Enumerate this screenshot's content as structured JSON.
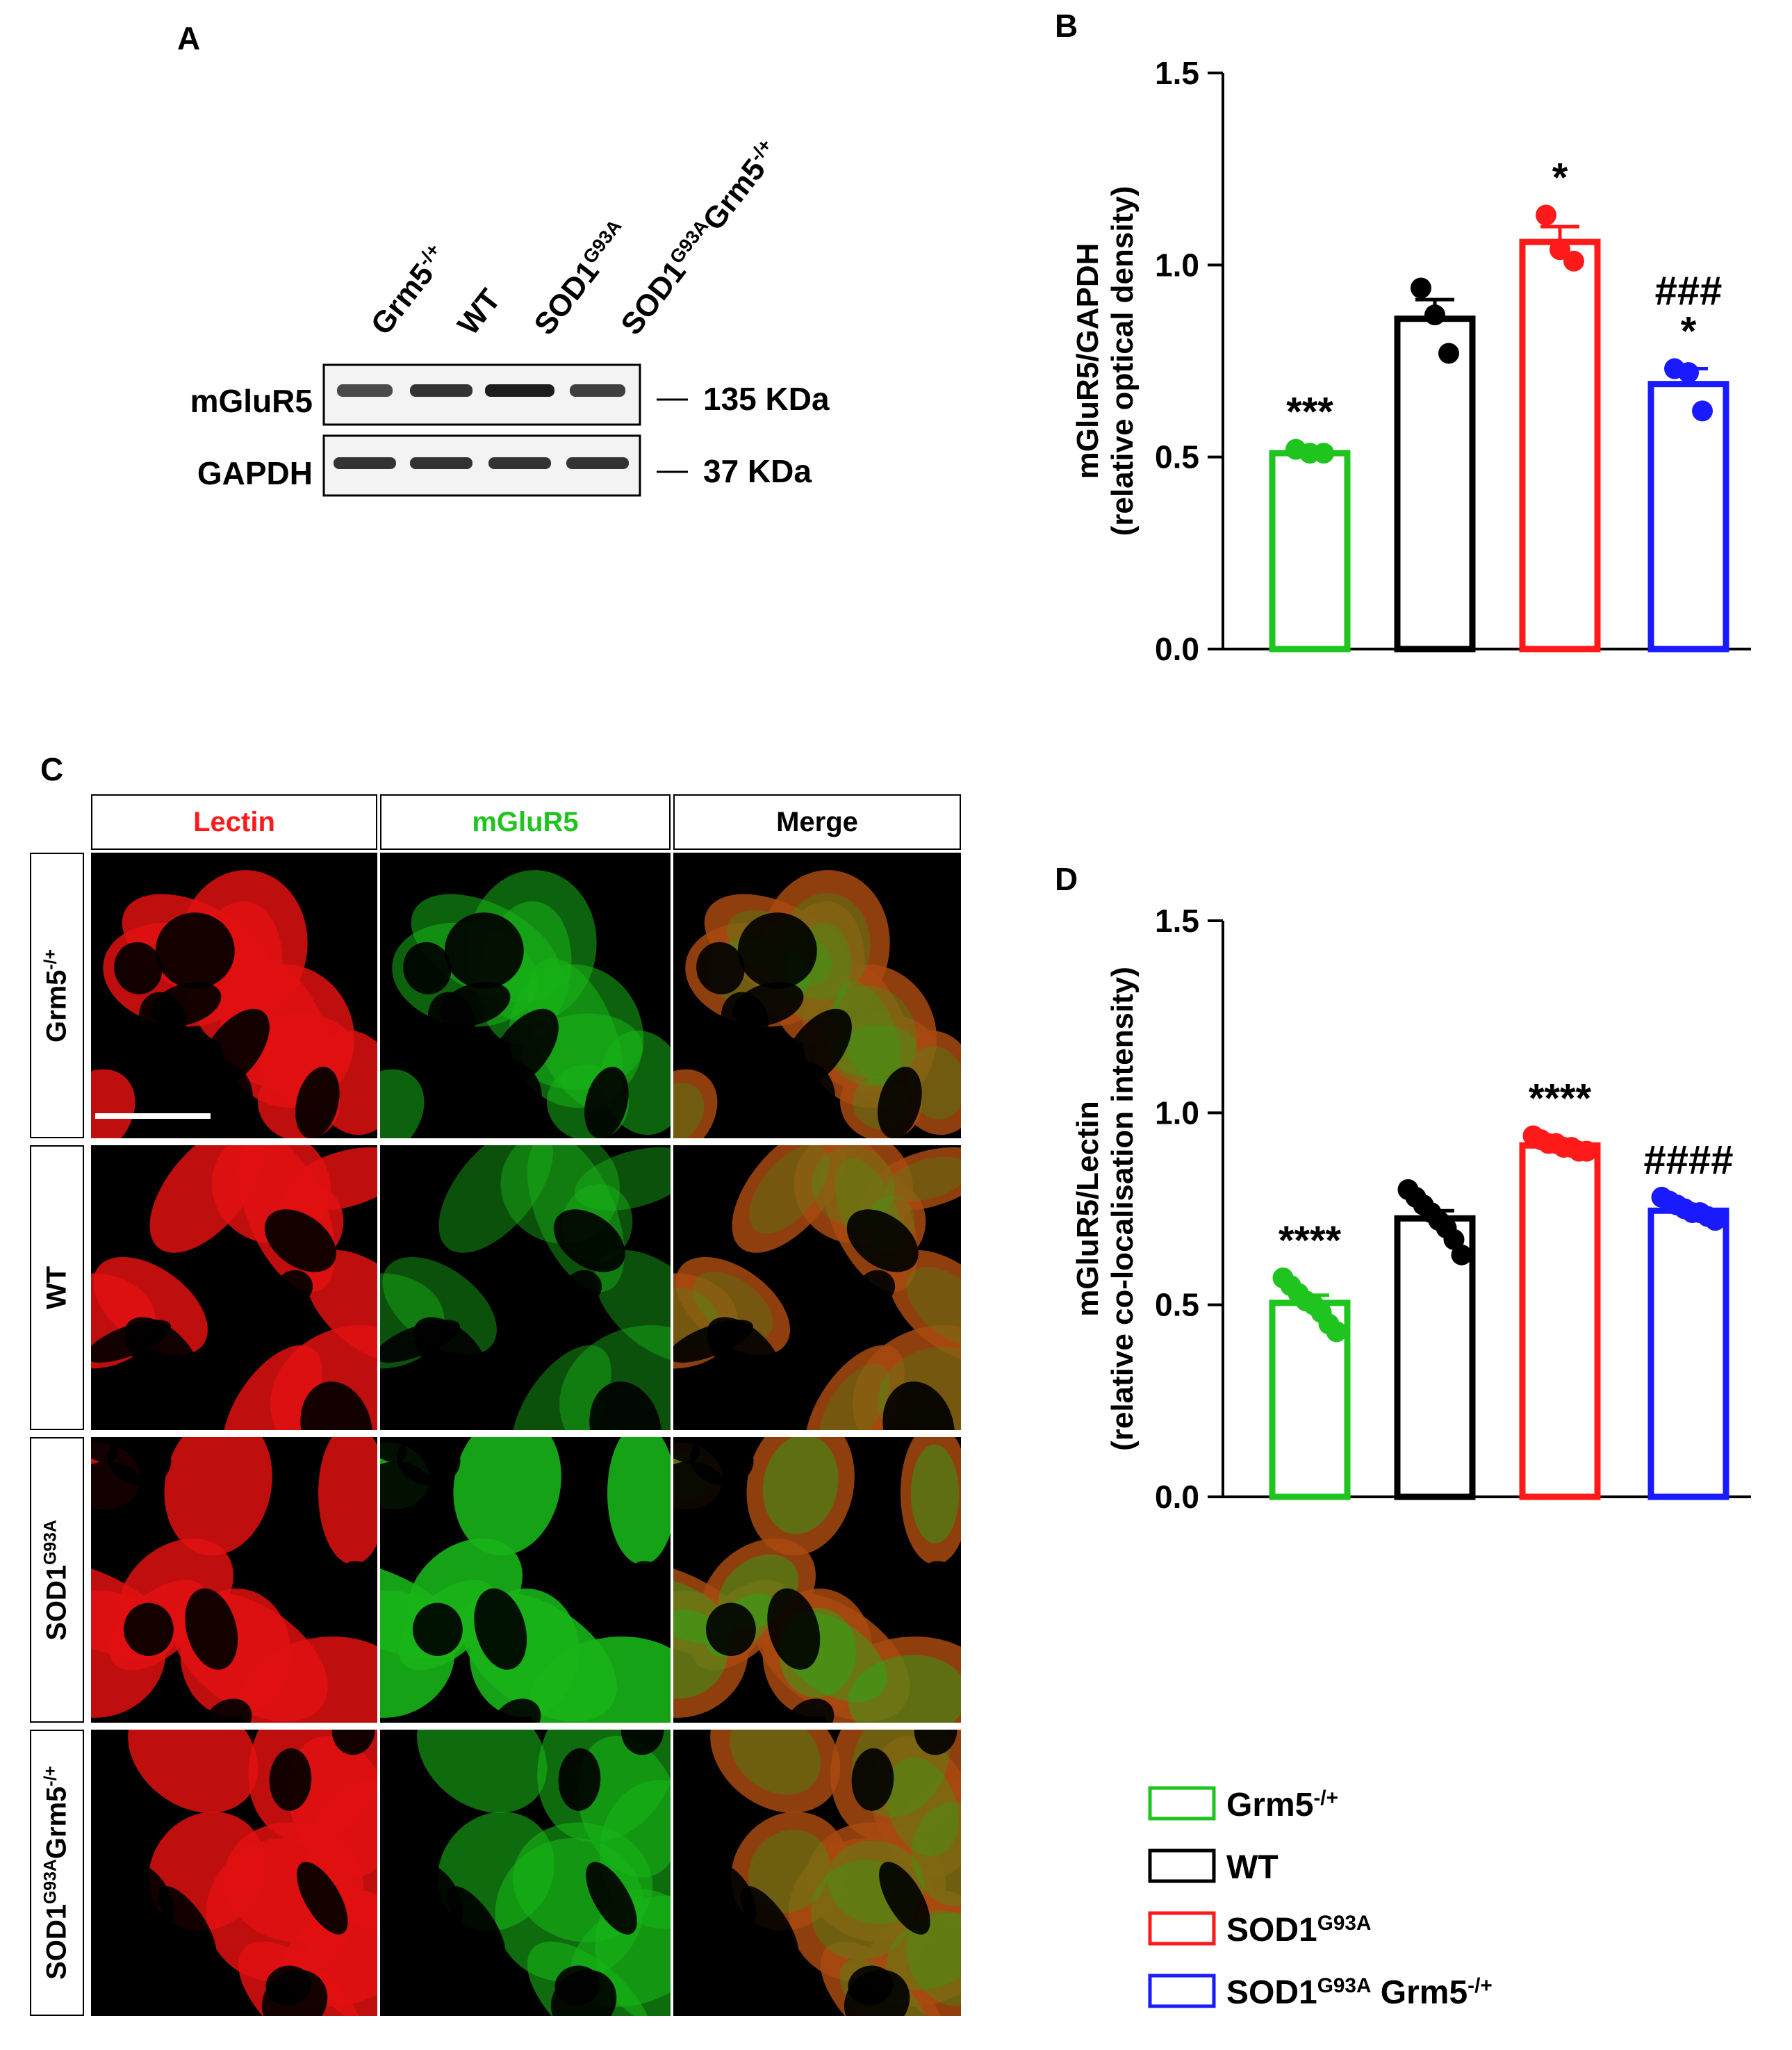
{
  "panels": {
    "A": "A",
    "B": "B",
    "C": "C",
    "D": "D"
  },
  "western_blot": {
    "lanes": [
      {
        "base": "Grm5",
        "sup": "-/+",
        "base2": "",
        "sup2": ""
      },
      {
        "base": "WT",
        "sup": "",
        "base2": "",
        "sup2": ""
      },
      {
        "base": "SOD1",
        "sup": "G93A",
        "base2": "",
        "sup2": ""
      },
      {
        "base": "SOD1",
        "sup": "G93A",
        "base2": "Grm5",
        "sup2": "-/+"
      }
    ],
    "bands": [
      {
        "protein": "mGluR5",
        "size": "135 KDa"
      },
      {
        "protein": "GAPDH",
        "size": "37 KDa"
      }
    ]
  },
  "chart_data": [
    {
      "panel": "B",
      "type": "bar",
      "ylabel": "mGluR5/GAPDH",
      "ylabel2": "(relative optical density)",
      "ylim": [
        0,
        1.5
      ],
      "yticks": [
        "0.0",
        "0.5",
        "1.0",
        "1.5"
      ],
      "categories": [
        "Grm5-/+",
        "WT",
        "SOD1G93A",
        "SOD1G93A Grm5-/+"
      ],
      "values": [
        0.51,
        0.86,
        1.06,
        0.69
      ],
      "errors": [
        0.01,
        0.05,
        0.04,
        0.04
      ],
      "points": [
        [
          0.52,
          0.51,
          0.51
        ],
        [
          0.94,
          0.87,
          0.77
        ],
        [
          1.13,
          1.04,
          1.01
        ],
        [
          0.73,
          0.72,
          0.62
        ]
      ],
      "colors": [
        "#1fc41f",
        "#000000",
        "#ff1a1a",
        "#1a1aff"
      ],
      "annotations": [
        [
          "***"
        ],
        [],
        [
          "*"
        ],
        [
          "###",
          "*"
        ]
      ]
    },
    {
      "panel": "D",
      "type": "bar",
      "ylabel": "mGluR5/Lectin",
      "ylabel2": "(relative co-localisation intensity)",
      "ylim": [
        0,
        1.5
      ],
      "yticks": [
        "0.0",
        "0.5",
        "1.0",
        "1.5"
      ],
      "categories": [
        "Grm5-/+",
        "WT",
        "SOD1G93A",
        "SOD1G93A Grm5-/+"
      ],
      "values": [
        0.505,
        0.725,
        0.915,
        0.745
      ],
      "errors": [
        0.02,
        0.02,
        0.01,
        0.01
      ],
      "points": [
        [
          0.57,
          0.55,
          0.53,
          0.51,
          0.5,
          0.48,
          0.45,
          0.43
        ],
        [
          0.8,
          0.78,
          0.76,
          0.74,
          0.72,
          0.7,
          0.67,
          0.63
        ],
        [
          0.94,
          0.93,
          0.92,
          0.92,
          0.91,
          0.91,
          0.9,
          0.9
        ],
        [
          0.78,
          0.77,
          0.76,
          0.75,
          0.74,
          0.74,
          0.73,
          0.72
        ]
      ],
      "colors": [
        "#1fc41f",
        "#000000",
        "#ff1a1a",
        "#1a1aff"
      ],
      "annotations": [
        [
          "****"
        ],
        [],
        [
          "****"
        ],
        [
          "####"
        ]
      ]
    }
  ],
  "legend": [
    {
      "base": "Grm5",
      "sup": "-/+",
      "base2": "",
      "sup2": "",
      "color": "#1fc41f"
    },
    {
      "base": "WT",
      "sup": "",
      "base2": "",
      "sup2": "",
      "color": "#000000"
    },
    {
      "base": "SOD1",
      "sup": "G93A",
      "base2": "",
      "sup2": "",
      "color": "#ff1a1a"
    },
    {
      "base": "SOD1",
      "sup": "G93A",
      "base2": " Grm5",
      "sup2": "-/+",
      "color": "#1a1aff"
    }
  ],
  "microscopy": {
    "columns": [
      {
        "label": "Lectin",
        "color": "#ff1a1a"
      },
      {
        "label": "mGluR5",
        "color": "#1fc41f"
      },
      {
        "label": "Merge",
        "color": "#000000"
      }
    ],
    "rows": [
      {
        "base": "Grm5",
        "sup": "-/+",
        "base2": "",
        "sup2": ""
      },
      {
        "base": "WT",
        "sup": "",
        "base2": "",
        "sup2": ""
      },
      {
        "base": "SOD1",
        "sup": "G93A",
        "base2": "",
        "sup2": ""
      },
      {
        "base": "SOD1",
        "sup": "G93A",
        "base2": "Grm5",
        "sup2": "-/+"
      }
    ]
  }
}
